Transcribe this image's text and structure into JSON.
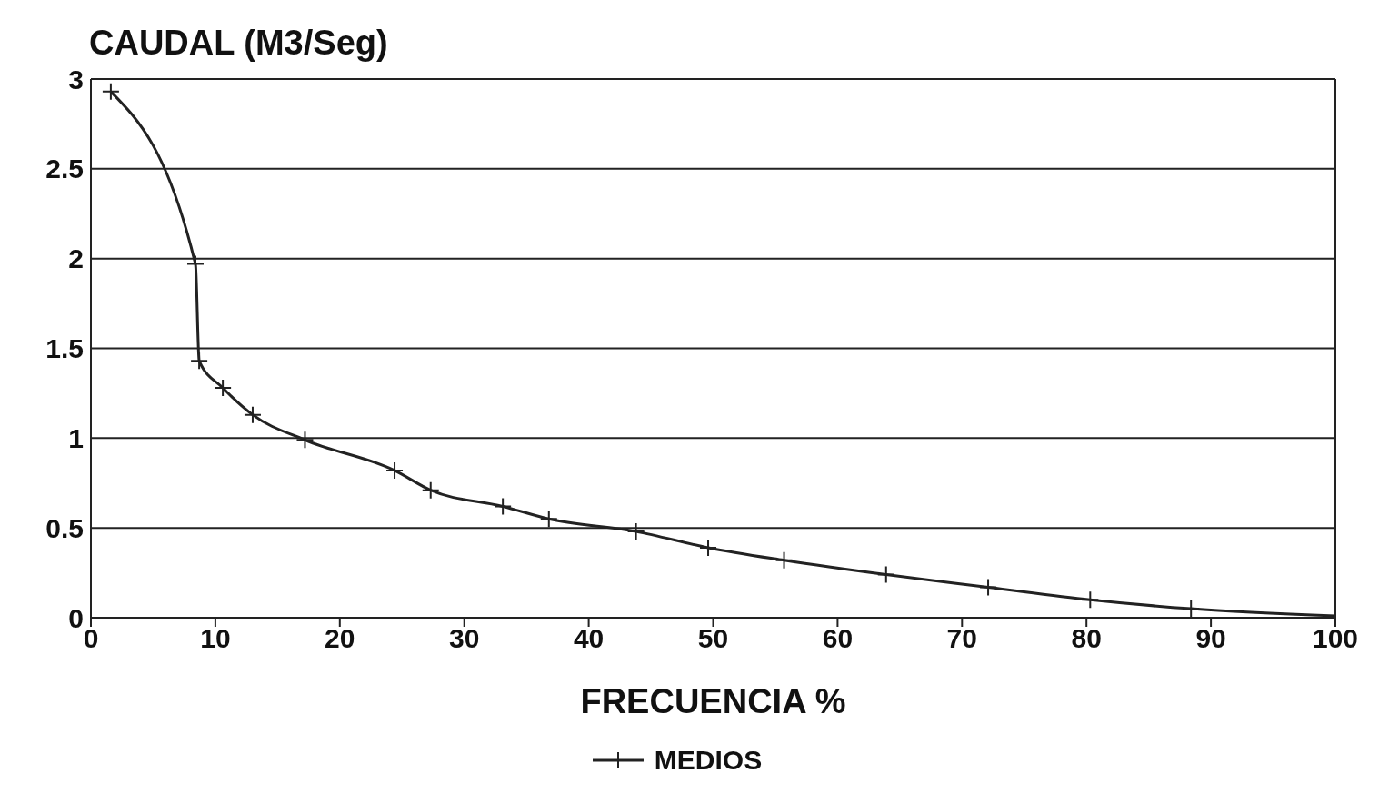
{
  "chart_data": {
    "type": "line",
    "ylabel": "CAUDAL (M3/Seg)",
    "xlabel": "FRECUENCIA %",
    "xlim": [
      0,
      100
    ],
    "xticks": [
      0,
      10,
      20,
      30,
      40,
      50,
      60,
      70,
      80,
      90,
      100
    ],
    "ylim": [
      0,
      3
    ],
    "yticks": [
      0,
      0.5,
      1,
      1.5,
      2,
      2.5,
      3
    ],
    "grid": "y",
    "legend": "bottom",
    "marker": "cross",
    "series": [
      {
        "name": "MEDIOS",
        "color": "#222222",
        "x": [
          1.6,
          8.4,
          8.7,
          10.6,
          13,
          17.2,
          24.4,
          27.3,
          33.1,
          36.8,
          43.8,
          49.6,
          55.7,
          63.9,
          72.1,
          80.3,
          88.4,
          100
        ],
        "values": [
          2.93,
          1.97,
          1.43,
          1.28,
          1.13,
          0.99,
          0.82,
          0.71,
          0.62,
          0.55,
          0.48,
          0.39,
          0.32,
          0.24,
          0.17,
          0.1,
          0.05,
          0.01
        ]
      }
    ]
  }
}
